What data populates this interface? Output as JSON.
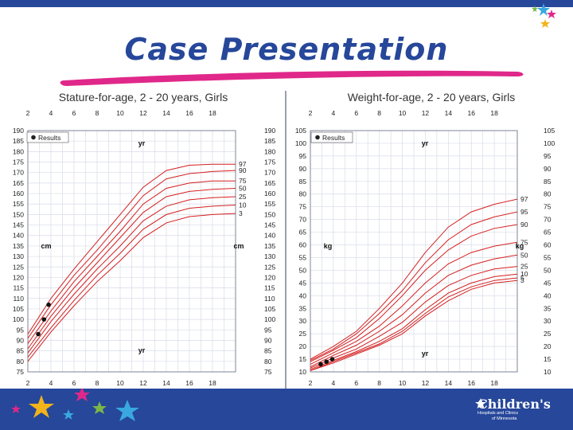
{
  "slide": {
    "title": "Case Presentation"
  },
  "logo": {
    "name": "Children's",
    "sub_line1": "Hospitals and Clinics",
    "sub_line2": "of Minnesota"
  },
  "colors": {
    "brand_blue": "#26479a",
    "curve_red": "#d41f1f",
    "swoosh_pink": "#e0288a",
    "grid": "#d8dce8"
  },
  "chart_data": [
    {
      "type": "line",
      "title": "Stature-for-age, 2 - 20 years, Girls",
      "x_ticks": [
        2,
        4,
        6,
        8,
        10,
        12,
        14,
        16,
        18
      ],
      "y_ticks": [
        75,
        80,
        85,
        90,
        95,
        100,
        105,
        110,
        115,
        120,
        125,
        130,
        135,
        140,
        145,
        150,
        155,
        160,
        165,
        170,
        175,
        180,
        185,
        190
      ],
      "xlim": [
        2,
        20
      ],
      "ylim": [
        75,
        190
      ],
      "x_unit_label": "yr",
      "y_unit_label": "cm",
      "legend": "Results",
      "curve_ages": [
        2,
        4,
        6,
        8,
        10,
        12,
        14,
        16,
        18,
        20
      ],
      "series": [
        {
          "name": "97",
          "values": [
            93,
            110,
            124,
            137,
            150,
            163,
            171,
            173.5,
            174,
            174
          ]
        },
        {
          "name": "90",
          "values": [
            91,
            107,
            121,
            133,
            146,
            159,
            167,
            169.5,
            170.5,
            171
          ]
        },
        {
          "name": "75",
          "values": [
            88.5,
            104,
            118,
            130,
            142,
            155,
            162.5,
            165,
            166,
            166
          ]
        },
        {
          "name": "50",
          "values": [
            86,
            101.5,
            115,
            127,
            139,
            151,
            158.5,
            161,
            162,
            162.5
          ]
        },
        {
          "name": "25",
          "values": [
            84,
            99,
            112,
            124,
            135,
            147,
            154,
            157,
            158,
            158.5
          ]
        },
        {
          "name": "10",
          "values": [
            82,
            96,
            109,
            121,
            131.5,
            143,
            150,
            153,
            154,
            154.5
          ]
        },
        {
          "name": "3",
          "values": [
            80,
            94,
            106.5,
            118,
            128,
            139,
            146,
            149,
            150,
            150.5
          ]
        }
      ],
      "results": [
        {
          "x": 2.9,
          "y": 93
        },
        {
          "x": 3.4,
          "y": 100
        },
        {
          "x": 3.8,
          "y": 107
        }
      ]
    },
    {
      "type": "line",
      "title": "Weight-for-age, 2 - 20 years, Girls",
      "x_ticks": [
        2,
        4,
        6,
        8,
        10,
        12,
        14,
        16,
        18
      ],
      "y_ticks": [
        10,
        15,
        20,
        25,
        30,
        35,
        40,
        45,
        50,
        55,
        60,
        65,
        70,
        75,
        80,
        85,
        90,
        95,
        100,
        105
      ],
      "xlim": [
        2,
        20
      ],
      "ylim": [
        10,
        105
      ],
      "x_unit_label": "yr",
      "y_unit_label": "kg",
      "legend": "Results",
      "curve_ages": [
        2,
        4,
        6,
        8,
        10,
        12,
        14,
        16,
        18,
        20
      ],
      "series": [
        {
          "name": "97",
          "values": [
            15,
            20,
            26,
            35,
            45,
            57,
            67,
            73,
            76,
            78
          ]
        },
        {
          "name": "95",
          "values": [
            14.5,
            19,
            25,
            33,
            42,
            53,
            62,
            68,
            71,
            73
          ]
        },
        {
          "name": "90",
          "values": [
            14,
            18.5,
            23.5,
            31,
            40,
            50,
            58,
            63.5,
            66.5,
            68
          ]
        },
        {
          "name": "75",
          "values": [
            13,
            17.5,
            22,
            28,
            36,
            45,
            52.5,
            57,
            59.5,
            61
          ]
        },
        {
          "name": "50",
          "values": [
            12,
            16.5,
            20.5,
            26,
            32.5,
            41,
            48,
            52,
            54.5,
            56
          ]
        },
        {
          "name": "25",
          "values": [
            11.5,
            15.5,
            19,
            24,
            29.5,
            37.5,
            44,
            48,
            50.5,
            51.5
          ]
        },
        {
          "name": "10",
          "values": [
            11,
            14.5,
            18,
            22,
            27,
            34.5,
            41,
            45,
            47.5,
            48.5
          ]
        },
        {
          "name": "5",
          "values": [
            10.5,
            14,
            17.5,
            21,
            26,
            33,
            39.5,
            43.5,
            46,
            47
          ]
        },
        {
          "name": "3",
          "values": [
            10.5,
            13.5,
            17,
            20.5,
            25,
            32,
            38,
            42.5,
            45,
            46
          ]
        }
      ],
      "results": [
        {
          "x": 2.9,
          "y": 13
        },
        {
          "x": 3.4,
          "y": 14
        },
        {
          "x": 3.9,
          "y": 15
        }
      ]
    }
  ]
}
